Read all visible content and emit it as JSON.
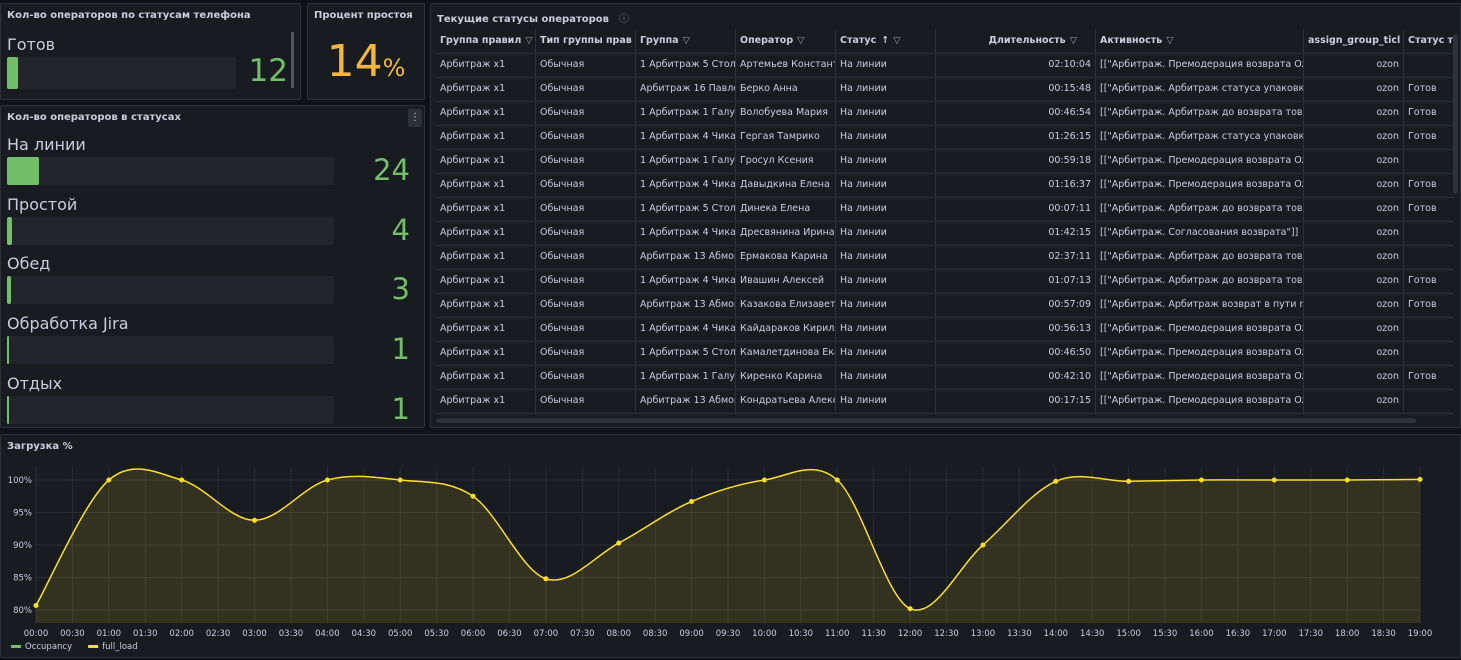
{
  "phone_status_panel": {
    "title": "Кол-во операторов по статусам телефона",
    "items": [
      {
        "label": "Готов",
        "value": 12
      }
    ]
  },
  "idle_panel": {
    "title": "Процент простоя",
    "value": 14,
    "unit": "%"
  },
  "status_panel": {
    "title": "Кол-во операторов в статусах",
    "items": [
      {
        "label": "На линии",
        "value": 24
      },
      {
        "label": "Простой",
        "value": 4
      },
      {
        "label": "Обед",
        "value": 3
      },
      {
        "label": "Обработка Jira",
        "value": 1
      },
      {
        "label": "Отдых",
        "value": 1
      }
    ]
  },
  "table": {
    "title": "Текущие статусы операторов",
    "columns": [
      "Группа правил",
      "Тип группы прав",
      "Группа",
      "Оператор",
      "Статус",
      "Длительность",
      "Активность",
      "assign_group_ticl",
      "Статус теле"
    ],
    "rows": [
      [
        "Арбитраж x1",
        "Обычная",
        "1 Арбитраж 5 Столп",
        "Артемьев Константи",
        "На линии",
        "02:10:04",
        "[[\"Арбитраж. Премодерация возврата Ozor",
        "ozon",
        null
      ],
      [
        "Арбитраж x1",
        "Обычная",
        "Арбитраж 16 Павлов",
        "Берко Анна",
        "На линии",
        "00:15:48",
        "[[\"Арбитраж. Арбитраж статуса упаковки\"]",
        "ozon",
        "Готов"
      ],
      [
        "Арбитраж x1",
        "Обычная",
        "1 Арбитраж 1 Галуш",
        "Волобуева Мария",
        "На линии",
        "00:46:54",
        "[[\"Арбитраж. Арбитраж до возврата товара",
        "ozon",
        "Готов"
      ],
      [
        "Арбитраж x1",
        "Обычная",
        "1 Арбитраж 4 Чикан",
        "Гергая Тамрико",
        "На линии",
        "01:26:15",
        "[[\"Арбитраж. Арбитраж статуса упаковки\"]",
        "ozon",
        "Готов"
      ],
      [
        "Арбитраж x1",
        "Обычная",
        "1 Арбитраж 1 Галуш",
        "Гросул Ксения",
        "На линии",
        "00:59:18",
        "[[\"Арбитраж. Премодерация возврата Ozor",
        "ozon",
        null
      ],
      [
        "Арбитраж x1",
        "Обычная",
        "1 Арбитраж 4 Чикан",
        "Давыдкина Елена",
        "На линии",
        "01:16:37",
        "[[\"Арбитраж. Премодерация возврата Ozor",
        "ozon",
        "Готов"
      ],
      [
        "Арбитраж x1",
        "Обычная",
        "1 Арбитраж 5 Столп",
        "Динека Елена",
        "На линии",
        "00:07:11",
        "[[\"Арбитраж. Арбитраж до возврата товара",
        "ozon",
        "Готов"
      ],
      [
        "Арбитраж x1",
        "Обычная",
        "1 Арбитраж 4 Чикан",
        "Дресвянина Ирина",
        "На линии",
        "01:42:15",
        "[[\"Арбитраж. Согласования возврата\"]]",
        "ozon",
        null
      ],
      [
        "Арбитраж x1",
        "Обычная",
        "Арбитраж 13 Абмор",
        "Ермакова Карина",
        "На линии",
        "02:37:11",
        "[[\"Арбитраж. Арбитраж до возврата товара",
        "ozon",
        null
      ],
      [
        "Арбитраж x1",
        "Обычная",
        "1 Арбитраж 4 Чикан",
        "Ивашин Алексей",
        "На линии",
        "01:07:13",
        "[[\"Арбитраж. Арбитраж до возврата товара",
        "ozon",
        "Готов"
      ],
      [
        "Арбитраж x1",
        "Обычная",
        "Арбитраж 13 Абмор",
        "Казакова Елизавета",
        "На линии",
        "00:57:09",
        "[[\"Арбитраж. Арбитраж возврат в пути rFBS",
        "ozon",
        "Готов"
      ],
      [
        "Арбитраж x1",
        "Обычная",
        "1 Арбитраж 4 Чикан",
        "Кайдараков Кирилл",
        "На линии",
        "00:56:13",
        "[[\"Арбитраж. Премодерация возврата Ozor",
        "ozon",
        null
      ],
      [
        "Арбитраж x1",
        "Обычная",
        "1 Арбитраж 5 Столп",
        "Камалетдинова Екат",
        "На линии",
        "00:46:50",
        "[[\"Арбитраж. Премодерация возврата Ozor",
        "ozon",
        null
      ],
      [
        "Арбитраж x1",
        "Обычная",
        "1 Арбитраж 1 Галуш",
        "Киренко Карина",
        "На линии",
        "00:42:10",
        "[[\"Арбитраж. Премодерация возврата Ozor",
        "ozon",
        "Готов"
      ],
      [
        "Арбитраж x1",
        "Обычная",
        "Арбитраж 13 Абмор",
        "Кондратьева Алекса",
        "На линии",
        "00:17:15",
        "[[\"Арбитраж. Премодерация возврата Ozor",
        "ozon",
        null
      ]
    ]
  },
  "chart_data": {
    "type": "line",
    "title": "Загрузка %",
    "x": [
      "00:00",
      "01:00",
      "02:00",
      "03:00",
      "04:00",
      "05:00",
      "06:00",
      "07:00",
      "08:00",
      "09:00",
      "10:00",
      "11:00",
      "12:00",
      "13:00",
      "14:00",
      "15:00",
      "16:00",
      "17:00",
      "18:00",
      "19:00"
    ],
    "series": [
      {
        "name": "full_load",
        "color": "#fade2a",
        "values": [
          80.7,
          100,
          100,
          93.8,
          100,
          100,
          97.5,
          84.8,
          90.3,
          96.7,
          100,
          100,
          80.2,
          90,
          99.8,
          99.8,
          100,
          100,
          100,
          100.1
        ]
      }
    ],
    "legend_only": [
      {
        "name": "Occupancy",
        "color": "#73bf69"
      }
    ],
    "ylim": [
      78,
      102
    ],
    "yticks": [
      {
        "value": 80,
        "label": "80%"
      },
      {
        "value": 85,
        "label": "85%"
      },
      {
        "value": 90,
        "label": "90%"
      },
      {
        "value": 95,
        "label": "95%"
      },
      {
        "value": 100,
        "label": "100%"
      }
    ],
    "xticks": [
      "00:00",
      "00:30",
      "01:00",
      "01:30",
      "02:00",
      "02:30",
      "03:00",
      "03:30",
      "04:00",
      "04:30",
      "05:00",
      "05:30",
      "06:00",
      "06:30",
      "07:00",
      "07:30",
      "08:00",
      "08:30",
      "09:00",
      "09:30",
      "10:00",
      "10:30",
      "11:00",
      "11:30",
      "12:00",
      "12:30",
      "13:00",
      "13:30",
      "14:00",
      "14:30",
      "15:00",
      "15:30",
      "16:00",
      "16:30",
      "17:00",
      "17:30",
      "18:00",
      "18:30",
      "19:00"
    ],
    "grid": true
  }
}
